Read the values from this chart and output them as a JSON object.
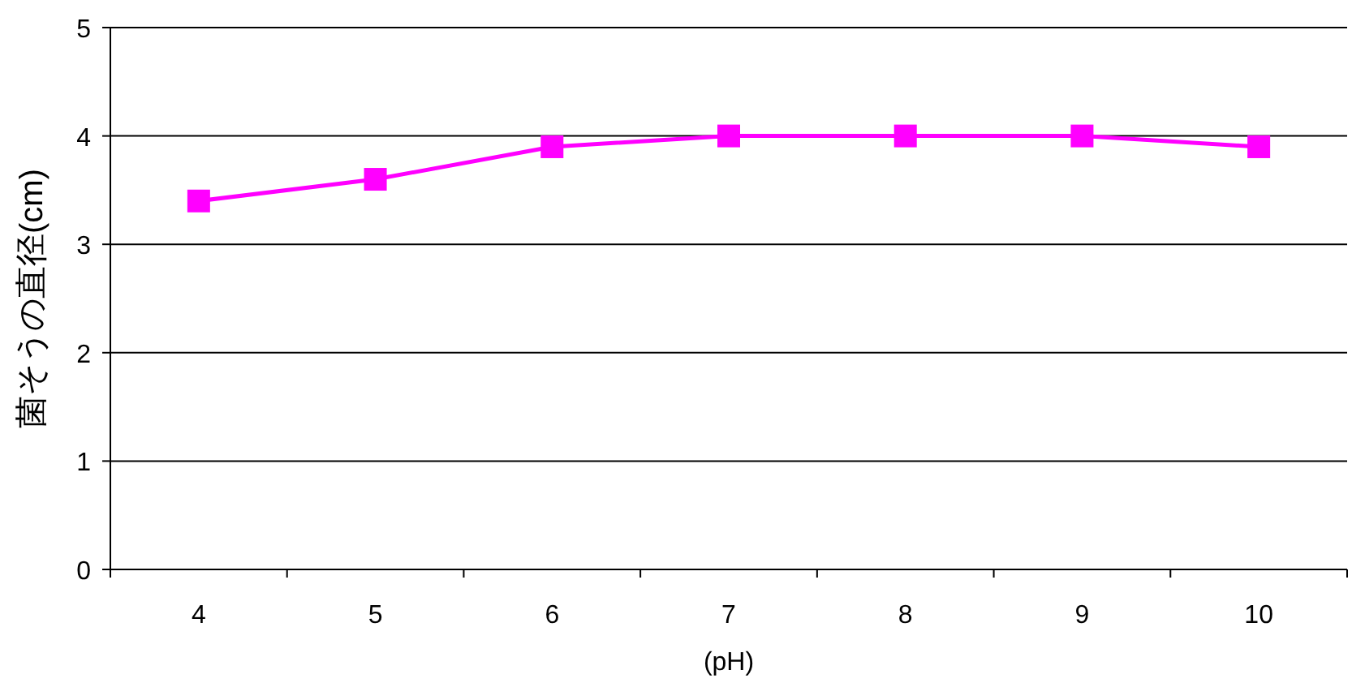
{
  "chart_data": {
    "type": "line",
    "xlabel": "(pH)",
    "ylabel": "菌そうの直径(cm)",
    "categories": [
      "4",
      "5",
      "6",
      "7",
      "8",
      "9",
      "10"
    ],
    "series": [
      {
        "color": "#ff00ff",
        "values": [
          3.4,
          3.6,
          3.9,
          4.0,
          4.0,
          4.0,
          3.9
        ]
      }
    ],
    "ylim": [
      0,
      5
    ],
    "yticks": [
      0,
      1,
      2,
      3,
      4,
      5
    ],
    "grid": "y",
    "marker": "square",
    "line_style": "solid"
  }
}
